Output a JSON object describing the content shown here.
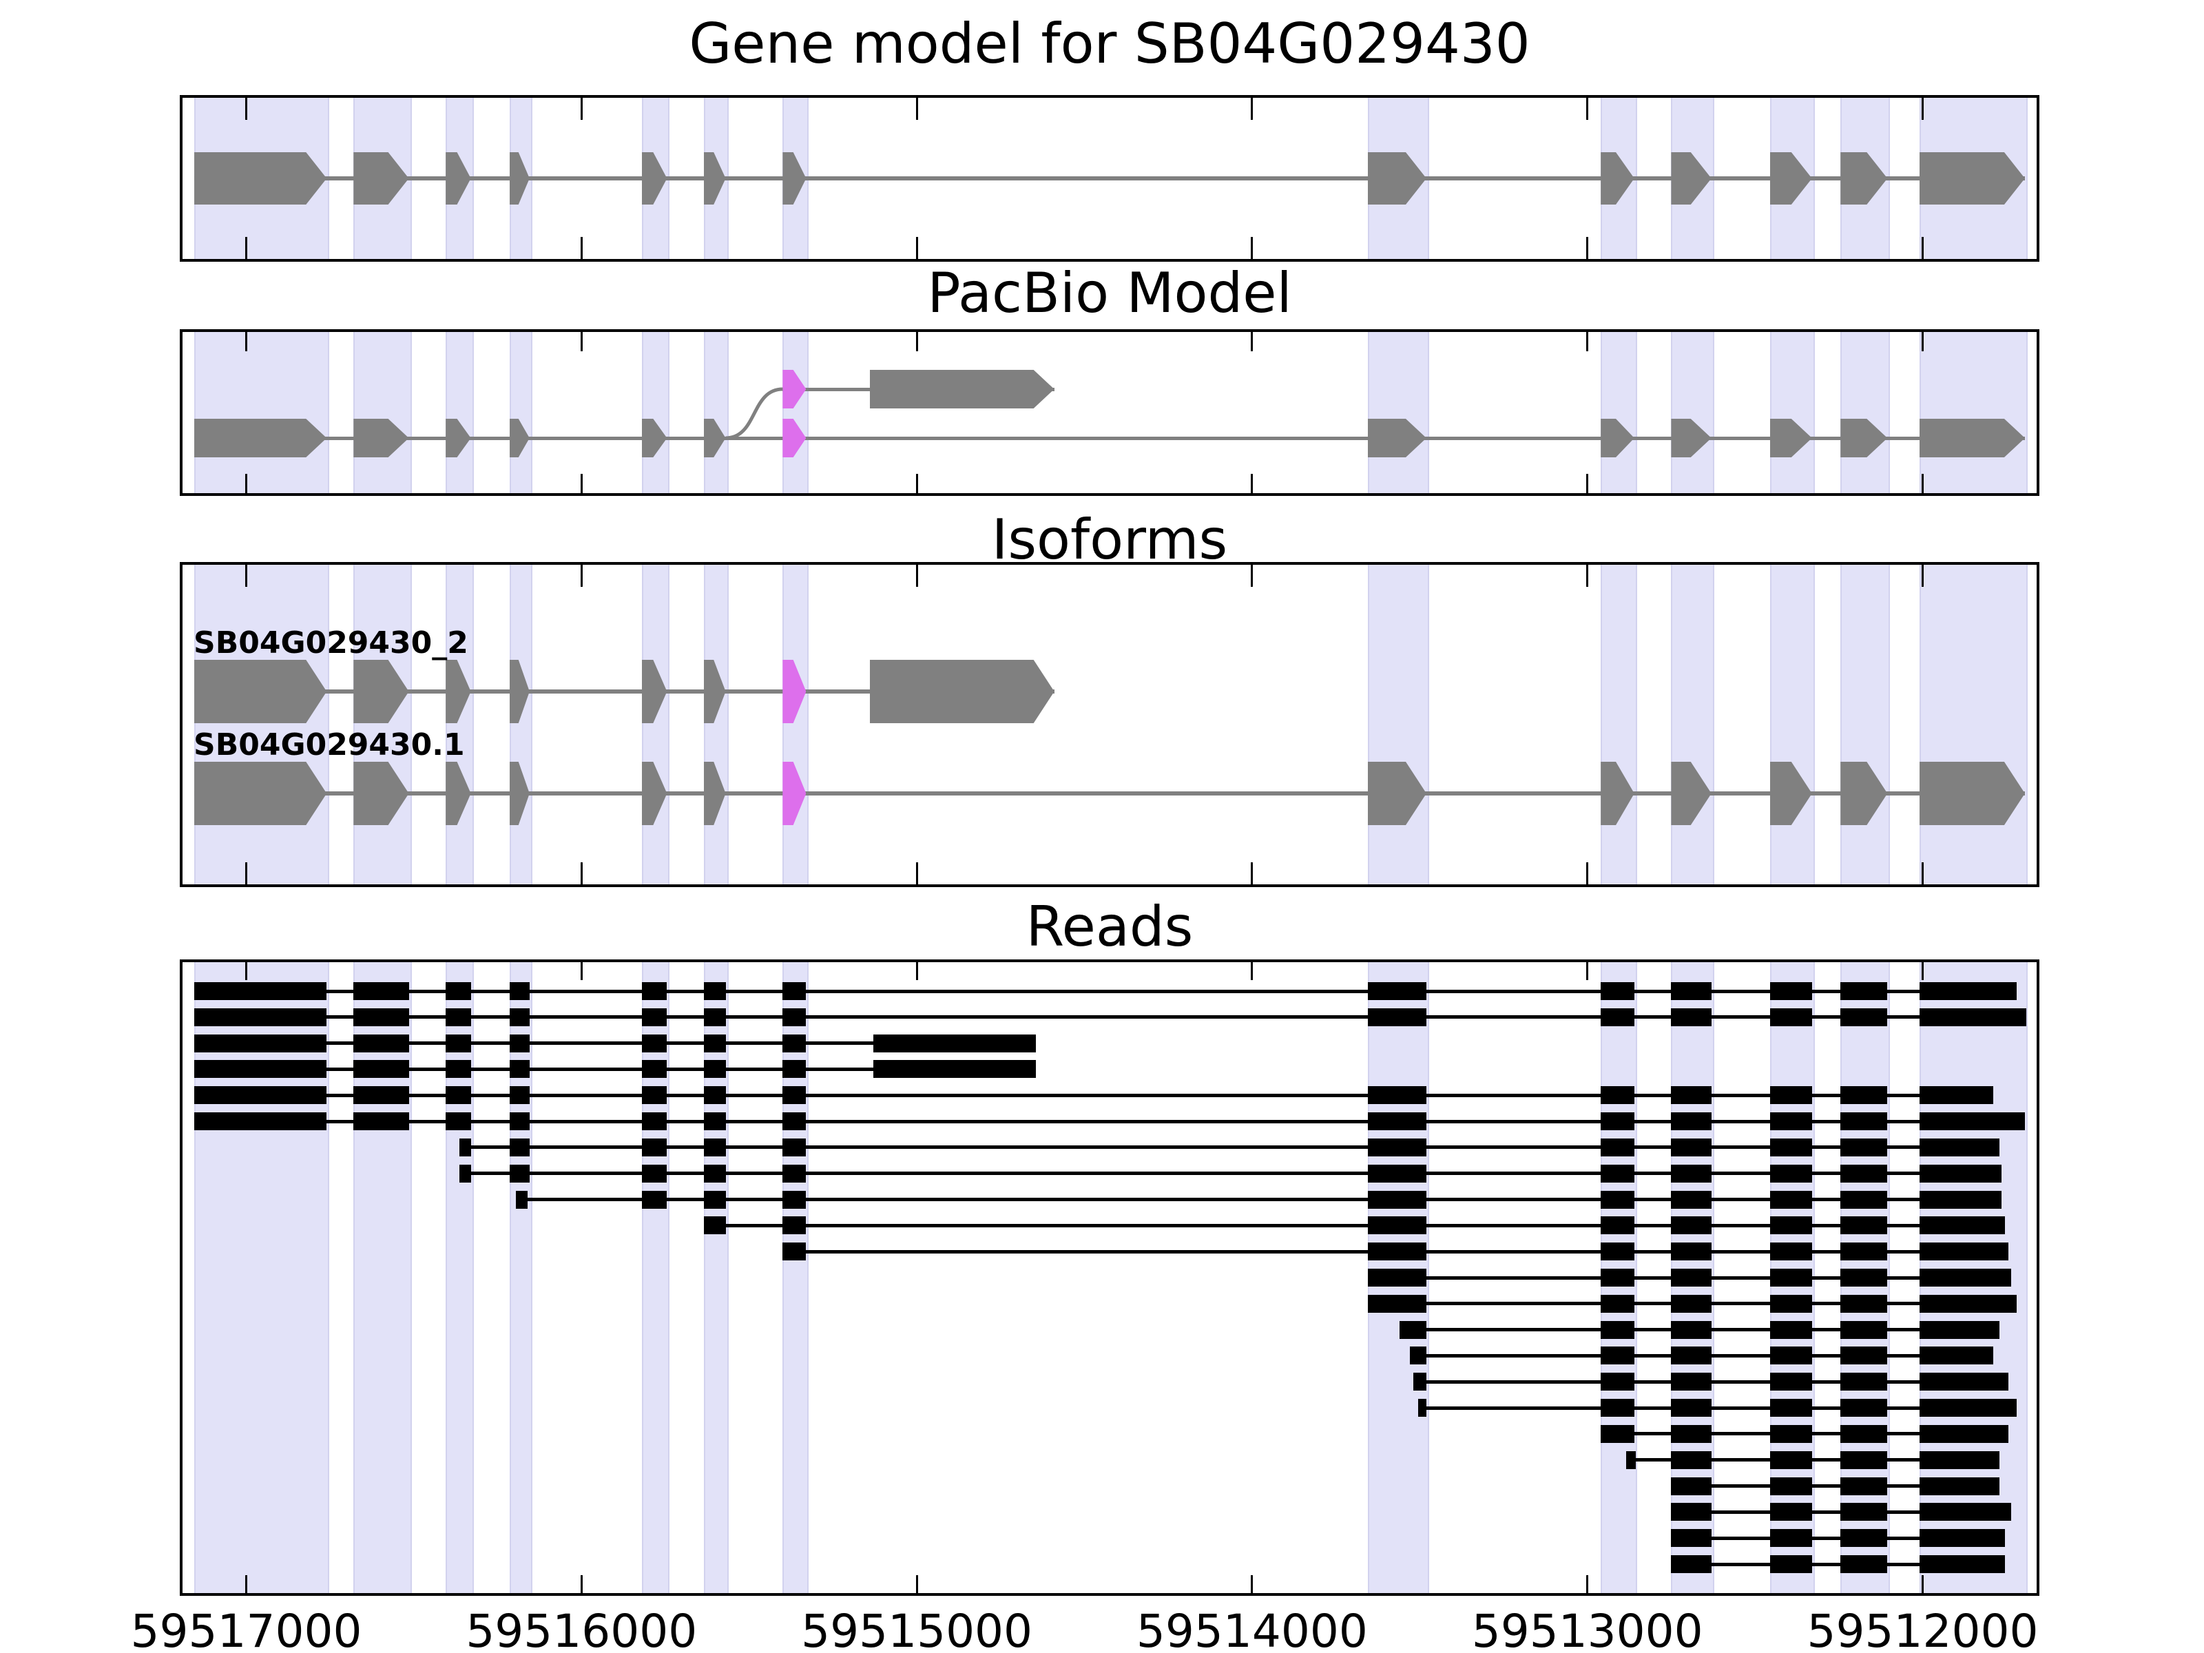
{
  "chart_data": {
    "type": "genome-browser",
    "gene_id": "SB04G029430",
    "panels": {
      "gene_model": {
        "title": "Gene model for SB04G029430"
      },
      "pacbio": {
        "title": "PacBio Model"
      },
      "isoforms": {
        "title": "Isoforms"
      },
      "reads": {
        "title": "Reads"
      }
    },
    "axis": {
      "domain": [
        59517190,
        59511660
      ],
      "ticks": [
        {
          "value": 59517000,
          "label": "59517000"
        },
        {
          "value": 59516000,
          "label": "59516000"
        },
        {
          "value": 59515000,
          "label": "59515000"
        },
        {
          "value": 59514000,
          "label": "59514000"
        },
        {
          "value": 59513000,
          "label": "59513000"
        },
        {
          "value": 59512000,
          "label": "59512000"
        }
      ]
    },
    "colors": {
      "exon_gray": "#808080",
      "line_gray": "#808080",
      "magenta": "#DD6FEC",
      "band_fill": "#e2e2f8",
      "band_edge": "#d2d2ee",
      "read_black": "#000000",
      "border_black": "#000000"
    },
    "model_exons": [
      [
        59517155,
        59516760
      ],
      [
        59516680,
        59516515
      ],
      [
        59516405,
        59516330
      ],
      [
        59516215,
        59516155
      ],
      [
        59515820,
        59515745
      ],
      [
        59515635,
        59515570
      ],
      [
        59515400,
        59515330
      ],
      [
        59513655,
        59513480
      ],
      [
        59512960,
        59512860
      ],
      [
        59512750,
        59512630
      ],
      [
        59512455,
        59512330
      ],
      [
        59512245,
        59512105
      ],
      [
        59512010,
        59511695
      ]
    ],
    "alt_terminal_exon": [
      59515140,
      59514590
    ],
    "gene_model_transcript": {
      "line": [
        59517155,
        59511695
      ],
      "exons": [
        {
          "x": [
            59517155,
            59516760
          ],
          "c": "g"
        },
        {
          "x": [
            59516680,
            59516515
          ],
          "c": "g"
        },
        {
          "x": [
            59516405,
            59516330
          ],
          "c": "g"
        },
        {
          "x": [
            59516215,
            59516155
          ],
          "c": "g"
        },
        {
          "x": [
            59515820,
            59515745
          ],
          "c": "g"
        },
        {
          "x": [
            59515635,
            59515570
          ],
          "c": "g"
        },
        {
          "x": [
            59515400,
            59515330
          ],
          "c": "g"
        },
        {
          "x": [
            59513655,
            59513480
          ],
          "c": "g"
        },
        {
          "x": [
            59512960,
            59512860
          ],
          "c": "g"
        },
        {
          "x": [
            59512750,
            59512630
          ],
          "c": "g"
        },
        {
          "x": [
            59512455,
            59512330
          ],
          "c": "g"
        },
        {
          "x": [
            59512245,
            59512105
          ],
          "c": "g"
        },
        {
          "x": [
            59512010,
            59511695
          ],
          "c": "g"
        }
      ]
    },
    "pacbio_model": {
      "top_row": {
        "line": [
          59515400,
          59514590
        ],
        "exons": [
          {
            "x": [
              59515400,
              59515330
            ],
            "c": "m"
          },
          {
            "x": [
              59515140,
              59514590
            ],
            "c": "g"
          }
        ]
      },
      "bottom_row": {
        "line": [
          59517155,
          59511695
        ],
        "exons": [
          {
            "x": [
              59517155,
              59516760
            ],
            "c": "g"
          },
          {
            "x": [
              59516680,
              59516515
            ],
            "c": "g"
          },
          {
            "x": [
              59516405,
              59516330
            ],
            "c": "g"
          },
          {
            "x": [
              59516215,
              59516155
            ],
            "c": "g"
          },
          {
            "x": [
              59515820,
              59515745
            ],
            "c": "g"
          },
          {
            "x": [
              59515635,
              59515570
            ],
            "c": "g"
          },
          {
            "x": [
              59515400,
              59515330
            ],
            "c": "m"
          },
          {
            "x": [
              59513655,
              59513480
            ],
            "c": "g"
          },
          {
            "x": [
              59512960,
              59512860
            ],
            "c": "g"
          },
          {
            "x": [
              59512750,
              59512630
            ],
            "c": "g"
          },
          {
            "x": [
              59512455,
              59512330
            ],
            "c": "g"
          },
          {
            "x": [
              59512245,
              59512105
            ],
            "c": "g"
          },
          {
            "x": [
              59512010,
              59511695
            ],
            "c": "g"
          }
        ]
      },
      "splice_curve": {
        "from_g": 59515570,
        "to_g": 59515400
      }
    },
    "isoforms": [
      {
        "label": "SB04G029430_2",
        "line": [
          59517155,
          59514590
        ],
        "exons": [
          {
            "x": [
              59517155,
              59516760
            ],
            "c": "g"
          },
          {
            "x": [
              59516680,
              59516515
            ],
            "c": "g"
          },
          {
            "x": [
              59516405,
              59516330
            ],
            "c": "g"
          },
          {
            "x": [
              59516215,
              59516155
            ],
            "c": "g"
          },
          {
            "x": [
              59515820,
              59515745
            ],
            "c": "g"
          },
          {
            "x": [
              59515635,
              59515570
            ],
            "c": "g"
          },
          {
            "x": [
              59515400,
              59515330
            ],
            "c": "m"
          },
          {
            "x": [
              59515140,
              59514590
            ],
            "c": "g"
          }
        ]
      },
      {
        "label": "SB04G029430.1",
        "line": [
          59517155,
          59511695
        ],
        "exons": [
          {
            "x": [
              59517155,
              59516760
            ],
            "c": "g"
          },
          {
            "x": [
              59516680,
              59516515
            ],
            "c": "g"
          },
          {
            "x": [
              59516405,
              59516330
            ],
            "c": "g"
          },
          {
            "x": [
              59516215,
              59516155
            ],
            "c": "g"
          },
          {
            "x": [
              59515820,
              59515745
            ],
            "c": "g"
          },
          {
            "x": [
              59515635,
              59515570
            ],
            "c": "g"
          },
          {
            "x": [
              59515400,
              59515330
            ],
            "c": "m"
          },
          {
            "x": [
              59513655,
              59513480
            ],
            "c": "g"
          },
          {
            "x": [
              59512960,
              59512860
            ],
            "c": "g"
          },
          {
            "x": [
              59512750,
              59512630
            ],
            "c": "g"
          },
          {
            "x": [
              59512455,
              59512330
            ],
            "c": "g"
          },
          {
            "x": [
              59512245,
              59512105
            ],
            "c": "g"
          },
          {
            "x": [
              59512010,
              59511695
            ],
            "c": "g"
          }
        ]
      }
    ],
    "reads": [
      [
        [
          59517155,
          59516760
        ],
        [
          59516680,
          59516515
        ],
        [
          59516405,
          59516330
        ],
        [
          59516215,
          59516155
        ],
        [
          59515820,
          59515745
        ],
        [
          59515635,
          59515570
        ],
        [
          59515400,
          59515330
        ],
        [
          59513655,
          59513480
        ],
        [
          59512960,
          59512860
        ],
        [
          59512750,
          59512630
        ],
        [
          59512455,
          59512330
        ],
        [
          59512245,
          59512105
        ],
        [
          59512010,
          59511720
        ]
      ],
      [
        [
          59517155,
          59516760
        ],
        [
          59516680,
          59516515
        ],
        [
          59516405,
          59516330
        ],
        [
          59516215,
          59516155
        ],
        [
          59515820,
          59515745
        ],
        [
          59515635,
          59515570
        ],
        [
          59515400,
          59515330
        ],
        [
          59513655,
          59513480
        ],
        [
          59512960,
          59512860
        ],
        [
          59512750,
          59512630
        ],
        [
          59512455,
          59512330
        ],
        [
          59512245,
          59512105
        ],
        [
          59512010,
          59511690
        ]
      ],
      [
        [
          59517155,
          59516760
        ],
        [
          59516680,
          59516515
        ],
        [
          59516405,
          59516330
        ],
        [
          59516215,
          59516155
        ],
        [
          59515820,
          59515745
        ],
        [
          59515635,
          59515570
        ],
        [
          59515400,
          59515330
        ],
        [
          59515130,
          59514645
        ]
      ],
      [
        [
          59517155,
          59516760
        ],
        [
          59516680,
          59516515
        ],
        [
          59516405,
          59516330
        ],
        [
          59516215,
          59516155
        ],
        [
          59515820,
          59515745
        ],
        [
          59515635,
          59515570
        ],
        [
          59515400,
          59515330
        ],
        [
          59515130,
          59514645
        ]
      ],
      [
        [
          59517155,
          59516760
        ],
        [
          59516680,
          59516515
        ],
        [
          59516405,
          59516330
        ],
        [
          59516215,
          59516155
        ],
        [
          59515820,
          59515745
        ],
        [
          59515635,
          59515570
        ],
        [
          59515400,
          59515330
        ],
        [
          59513655,
          59513480
        ],
        [
          59512960,
          59512860
        ],
        [
          59512750,
          59512630
        ],
        [
          59512455,
          59512330
        ],
        [
          59512245,
          59512105
        ],
        [
          59512010,
          59511790
        ]
      ],
      [
        [
          59517155,
          59516760
        ],
        [
          59516680,
          59516515
        ],
        [
          59516405,
          59516330
        ],
        [
          59516215,
          59516155
        ],
        [
          59515820,
          59515745
        ],
        [
          59515635,
          59515570
        ],
        [
          59515400,
          59515330
        ],
        [
          59513655,
          59513480
        ],
        [
          59512960,
          59512860
        ],
        [
          59512750,
          59512630
        ],
        [
          59512455,
          59512330
        ],
        [
          59512245,
          59512105
        ],
        [
          59512010,
          59511695
        ]
      ],
      [
        [
          59516365,
          59516330
        ],
        [
          59516215,
          59516155
        ],
        [
          59515820,
          59515745
        ],
        [
          59515635,
          59515570
        ],
        [
          59515400,
          59515330
        ],
        [
          59513655,
          59513480
        ],
        [
          59512960,
          59512860
        ],
        [
          59512750,
          59512630
        ],
        [
          59512455,
          59512330
        ],
        [
          59512245,
          59512105
        ],
        [
          59512010,
          59511770
        ]
      ],
      [
        [
          59516365,
          59516330
        ],
        [
          59516215,
          59516155
        ],
        [
          59515820,
          59515745
        ],
        [
          59515635,
          59515570
        ],
        [
          59515400,
          59515330
        ],
        [
          59513655,
          59513480
        ],
        [
          59512960,
          59512860
        ],
        [
          59512750,
          59512630
        ],
        [
          59512455,
          59512330
        ],
        [
          59512245,
          59512105
        ],
        [
          59512010,
          59511765
        ]
      ],
      [
        [
          59516195,
          59516160
        ],
        [
          59515820,
          59515745
        ],
        [
          59515635,
          59515570
        ],
        [
          59515400,
          59515330
        ],
        [
          59513655,
          59513480
        ],
        [
          59512960,
          59512860
        ],
        [
          59512750,
          59512630
        ],
        [
          59512455,
          59512330
        ],
        [
          59512245,
          59512105
        ],
        [
          59512010,
          59511765
        ]
      ],
      [
        [
          59515635,
          59515570
        ],
        [
          59515400,
          59515330
        ],
        [
          59513655,
          59513480
        ],
        [
          59512960,
          59512860
        ],
        [
          59512750,
          59512630
        ],
        [
          59512455,
          59512330
        ],
        [
          59512245,
          59512105
        ],
        [
          59512010,
          59511755
        ]
      ],
      [
        [
          59515400,
          59515330
        ],
        [
          59513655,
          59513480
        ],
        [
          59512960,
          59512860
        ],
        [
          59512750,
          59512630
        ],
        [
          59512455,
          59512330
        ],
        [
          59512245,
          59512105
        ],
        [
          59512010,
          59511745
        ]
      ],
      [
        [
          59513655,
          59513480
        ],
        [
          59512960,
          59512860
        ],
        [
          59512750,
          59512630
        ],
        [
          59512455,
          59512330
        ],
        [
          59512245,
          59512105
        ],
        [
          59512010,
          59511735
        ]
      ],
      [
        [
          59513655,
          59513480
        ],
        [
          59512960,
          59512860
        ],
        [
          59512750,
          59512630
        ],
        [
          59512455,
          59512330
        ],
        [
          59512245,
          59512105
        ],
        [
          59512010,
          59511720
        ]
      ],
      [
        [
          59513560,
          59513480
        ],
        [
          59512960,
          59512860
        ],
        [
          59512750,
          59512630
        ],
        [
          59512455,
          59512330
        ],
        [
          59512245,
          59512105
        ],
        [
          59512010,
          59511770
        ]
      ],
      [
        [
          59513530,
          59513480
        ],
        [
          59512960,
          59512860
        ],
        [
          59512750,
          59512630
        ],
        [
          59512455,
          59512330
        ],
        [
          59512245,
          59512105
        ],
        [
          59512010,
          59511790
        ]
      ],
      [
        [
          59513520,
          59513480
        ],
        [
          59512960,
          59512860
        ],
        [
          59512750,
          59512630
        ],
        [
          59512455,
          59512330
        ],
        [
          59512245,
          59512105
        ],
        [
          59512010,
          59511745
        ]
      ],
      [
        [
          59513505,
          59513480
        ],
        [
          59512960,
          59512860
        ],
        [
          59512750,
          59512630
        ],
        [
          59512455,
          59512330
        ],
        [
          59512245,
          59512105
        ],
        [
          59512010,
          59511720
        ]
      ],
      [
        [
          59512960,
          59512860
        ],
        [
          59512750,
          59512630
        ],
        [
          59512455,
          59512330
        ],
        [
          59512245,
          59512105
        ],
        [
          59512010,
          59511745
        ]
      ],
      [
        [
          59512885,
          59512855
        ],
        [
          59512750,
          59512630
        ],
        [
          59512455,
          59512330
        ],
        [
          59512245,
          59512105
        ],
        [
          59512010,
          59511770
        ]
      ],
      [
        [
          59512750,
          59512630
        ],
        [
          59512455,
          59512330
        ],
        [
          59512245,
          59512105
        ],
        [
          59512010,
          59511770
        ]
      ],
      [
        [
          59512750,
          59512630
        ],
        [
          59512455,
          59512330
        ],
        [
          59512245,
          59512105
        ],
        [
          59512010,
          59511735
        ]
      ],
      [
        [
          59512750,
          59512630
        ],
        [
          59512455,
          59512330
        ],
        [
          59512245,
          59512105
        ],
        [
          59512010,
          59511755
        ]
      ],
      [
        [
          59512750,
          59512630
        ],
        [
          59512455,
          59512330
        ],
        [
          59512245,
          59512105
        ],
        [
          59512010,
          59511755
        ]
      ]
    ]
  }
}
